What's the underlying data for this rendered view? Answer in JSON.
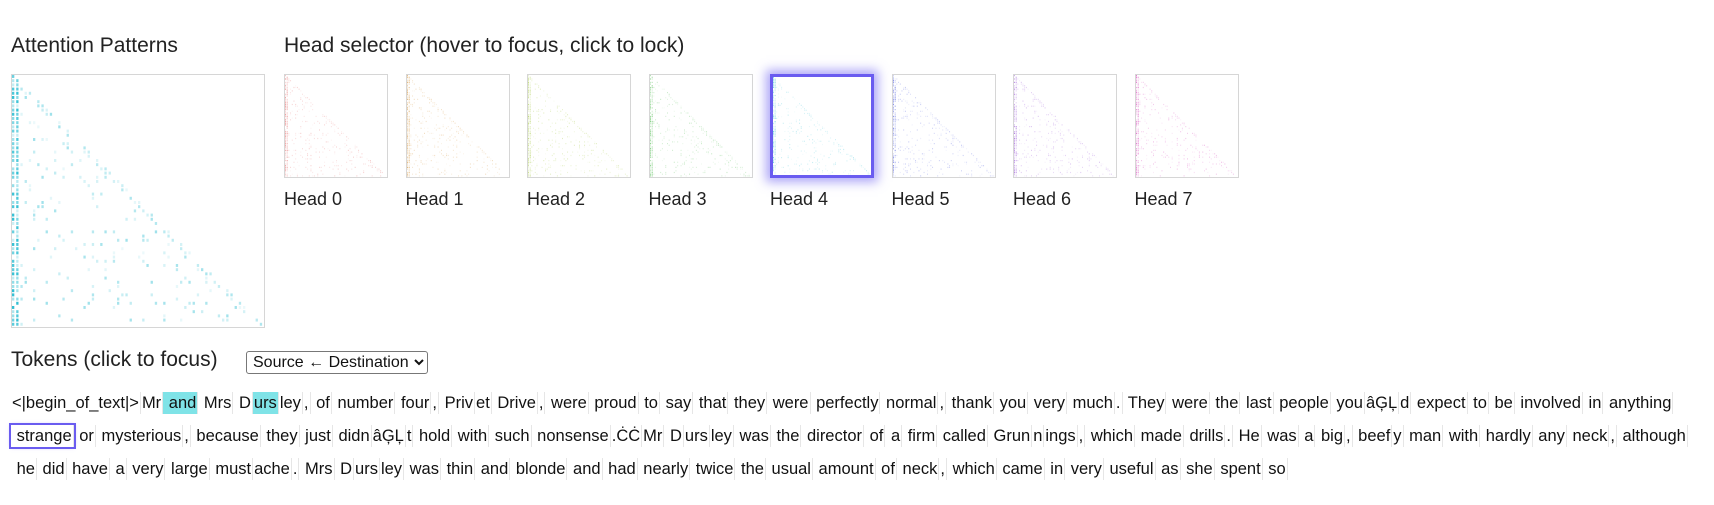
{
  "attention": {
    "title": "Attention Patterns"
  },
  "head_selector": {
    "title": "Head selector",
    "hint": "(hover to focus, click to lock)",
    "selected_head": 4,
    "heads": [
      {
        "label": "Head 0",
        "color": "#e05a5a"
      },
      {
        "label": "Head 1",
        "color": "#d08a2a"
      },
      {
        "label": "Head 2",
        "color": "#9ac22a"
      },
      {
        "label": "Head 3",
        "color": "#3cb33c"
      },
      {
        "label": "Head 4",
        "color": "#1fb9cf"
      },
      {
        "label": "Head 5",
        "color": "#3848d8"
      },
      {
        "label": "Head 6",
        "color": "#8a3bd0"
      },
      {
        "label": "Head 7",
        "color": "#d02ab0"
      }
    ]
  },
  "tokens_panel": {
    "title": "Tokens",
    "hint": "(click to focus)",
    "mode_options": [
      "Source ← Destination"
    ],
    "mode_selected": "Source ← Destination",
    "focused_index": 45,
    "highlight_indices": [
      2,
      5
    ],
    "tokens": [
      "<|begin_of_text|>",
      "Mr",
      " and",
      " Mrs",
      " D",
      "urs",
      "ley",
      ",",
      " of",
      " number",
      " four",
      ",",
      " Priv",
      "et",
      " Drive",
      ",",
      " were",
      " proud",
      " to",
      " say",
      " that",
      " they",
      " were",
      " perfectly",
      " normal",
      ",",
      " thank",
      " you",
      " very",
      " much",
      ".",
      " They",
      " were",
      " the",
      " last",
      " people",
      " you",
      "âĢĻ",
      "d",
      " expect",
      " to",
      " be",
      " involved",
      " in",
      " anything",
      " strange",
      " or",
      " mysterious",
      ",",
      " because",
      " they",
      " just",
      " didn",
      "âĢĻ",
      "t",
      " hold",
      " with",
      " such",
      " nonsense",
      ".ĊĊ",
      "Mr",
      " D",
      "urs",
      "ley",
      " was",
      " the",
      " director",
      " of",
      " a",
      " firm",
      " called",
      " Grun",
      "n",
      "ings",
      ",",
      " which",
      " made",
      " drills",
      ".",
      " He",
      " was",
      " a",
      " big",
      ",",
      " beef",
      "y",
      " man",
      " with",
      " hardly",
      " any",
      " neck",
      ",",
      " although",
      " he",
      " did",
      " have",
      " a",
      " very",
      " large",
      " must",
      "ache",
      ".",
      " Mrs",
      " D",
      "urs",
      "ley",
      " was",
      " thin",
      " and",
      " blonde",
      " and",
      " had",
      " nearly",
      " twice",
      " the",
      " usual",
      " amount",
      " of",
      " neck",
      ",",
      " which",
      " came",
      " in",
      " very",
      " useful",
      " as",
      " she",
      " spent",
      " so"
    ]
  }
}
